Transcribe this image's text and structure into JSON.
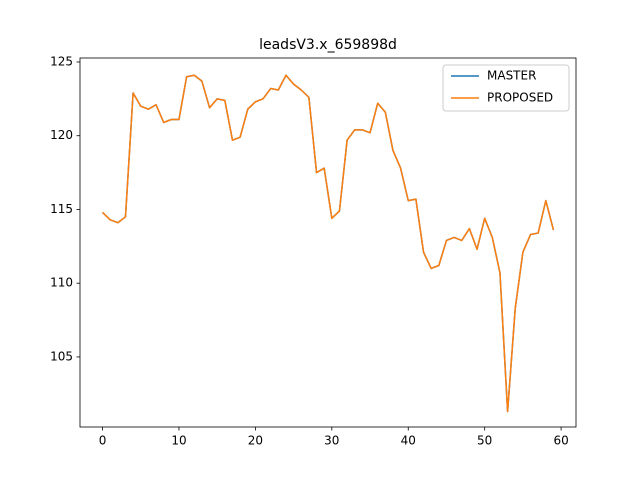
{
  "chart_data": {
    "type": "line",
    "title": "leadsV3.x_659898d",
    "x": [
      0,
      1,
      2,
      3,
      4,
      5,
      6,
      7,
      8,
      9,
      10,
      11,
      12,
      13,
      14,
      15,
      16,
      17,
      18,
      19,
      20,
      21,
      22,
      23,
      24,
      25,
      26,
      27,
      28,
      29,
      30,
      31,
      32,
      33,
      34,
      35,
      36,
      37,
      38,
      39,
      40,
      41,
      42,
      43,
      44,
      45,
      46,
      47,
      48,
      49,
      50,
      51,
      52,
      53,
      54,
      55,
      56,
      57,
      58,
      59
    ],
    "series": [
      {
        "name": "MASTER",
        "color": "#1f77b4",
        "values": [
          114.8,
          114.3,
          114.1,
          114.5,
          122.9,
          122.0,
          121.8,
          122.1,
          120.9,
          121.1,
          121.1,
          124.0,
          124.1,
          123.7,
          121.9,
          122.5,
          122.4,
          119.7,
          119.9,
          121.8,
          122.3,
          122.5,
          123.2,
          123.1,
          124.1,
          123.5,
          123.1,
          122.6,
          117.5,
          117.8,
          114.4,
          114.9,
          119.7,
          120.4,
          120.4,
          120.2,
          122.2,
          121.6,
          119.0,
          117.8,
          115.6,
          115.7,
          112.1,
          111.0,
          111.2,
          112.9,
          113.1,
          112.9,
          113.7,
          112.3,
          114.4,
          113.1,
          110.7,
          101.3,
          108.3,
          112.1,
          113.3,
          113.4,
          115.6,
          113.6
        ]
      },
      {
        "name": "PROPOSED",
        "color": "#ff7f0e",
        "values": [
          114.8,
          114.3,
          114.1,
          114.5,
          122.9,
          122.0,
          121.8,
          122.1,
          120.9,
          121.1,
          121.1,
          124.0,
          124.1,
          123.7,
          121.9,
          122.5,
          122.4,
          119.7,
          119.9,
          121.8,
          122.3,
          122.5,
          123.2,
          123.1,
          124.1,
          123.5,
          123.1,
          122.6,
          117.5,
          117.8,
          114.4,
          114.9,
          119.7,
          120.4,
          120.4,
          120.2,
          122.2,
          121.6,
          119.0,
          117.8,
          115.6,
          115.7,
          112.1,
          111.0,
          111.2,
          112.9,
          113.1,
          112.9,
          113.7,
          112.3,
          114.4,
          113.1,
          110.7,
          101.3,
          108.3,
          112.1,
          113.3,
          113.4,
          115.6,
          113.6
        ]
      }
    ],
    "xlim": [
      -2.95,
      61.95
    ],
    "ylim": [
      100.25,
      125.27
    ],
    "xticks": [
      0,
      10,
      20,
      30,
      40,
      50,
      60
    ],
    "yticks": [
      105,
      110,
      115,
      120,
      125
    ],
    "legend": "upper right"
  }
}
